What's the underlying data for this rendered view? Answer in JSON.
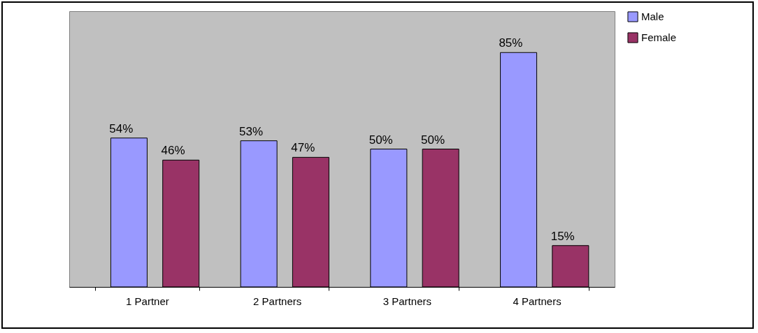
{
  "chart_data": {
    "type": "bar",
    "categories": [
      "1 Partner",
      "2 Partners",
      "3 Partners",
      "4 Partners"
    ],
    "series": [
      {
        "name": "Male",
        "color": "#9999ff",
        "values": [
          54,
          53,
          50,
          85
        ],
        "value_labels": [
          "54%",
          "53%",
          "50%",
          "85%"
        ]
      },
      {
        "name": "Female",
        "color": "#993366",
        "values": [
          46,
          47,
          50,
          15
        ],
        "value_labels": [
          "46%",
          "47%",
          "50%",
          "15%"
        ]
      }
    ],
    "legend": "right",
    "grid": false
  }
}
